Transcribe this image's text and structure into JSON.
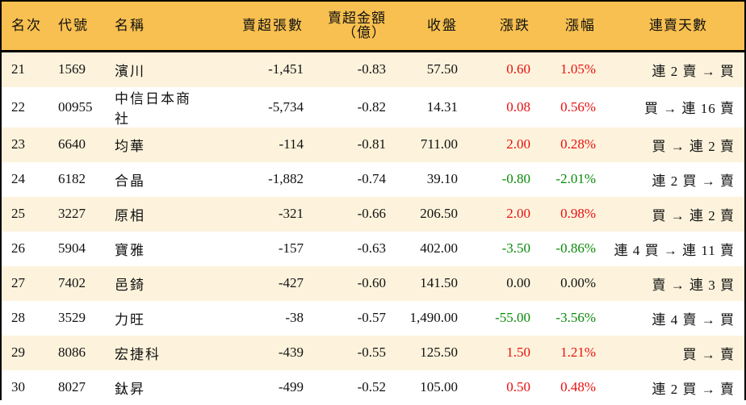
{
  "colors": {
    "header_bg": "#f8c050",
    "row_odd_bg": "#fdf3dc",
    "row_even_bg": "#ffffff",
    "up": "#e81010",
    "down": "#0a8a0a",
    "border": "#000000"
  },
  "table": {
    "headers": {
      "rank": "名次",
      "code": "代號",
      "name": "名稱",
      "net_sell_lots": "賣超張數",
      "net_sell_amount": "賣超金額",
      "net_sell_amount_unit": "（億）",
      "close": "收盤",
      "change": "漲跌",
      "change_pct": "漲幅",
      "streak": "連賣天數"
    },
    "rows": [
      {
        "rank": "21",
        "code": "1569",
        "name": "濱川",
        "net_sell_lots": "-1,451",
        "net_sell_amount": "-0.83",
        "close": "57.50",
        "change": "0.60",
        "change_pct": "1.05%",
        "direction": "up",
        "streak": "連 2 賣 → 買"
      },
      {
        "rank": "22",
        "code": "00955",
        "name": "中信日本商社",
        "net_sell_lots": "-5,734",
        "net_sell_amount": "-0.82",
        "close": "14.31",
        "change": "0.08",
        "change_pct": "0.56%",
        "direction": "up",
        "streak": "買 → 連 16 賣"
      },
      {
        "rank": "23",
        "code": "6640",
        "name": "均華",
        "net_sell_lots": "-114",
        "net_sell_amount": "-0.81",
        "close": "711.00",
        "change": "2.00",
        "change_pct": "0.28%",
        "direction": "up",
        "streak": "買 → 連 2 賣"
      },
      {
        "rank": "24",
        "code": "6182",
        "name": "合晶",
        "net_sell_lots": "-1,882",
        "net_sell_amount": "-0.74",
        "close": "39.10",
        "change": "-0.80",
        "change_pct": "-2.01%",
        "direction": "down",
        "streak": "連 2 買 → 賣"
      },
      {
        "rank": "25",
        "code": "3227",
        "name": "原相",
        "net_sell_lots": "-321",
        "net_sell_amount": "-0.66",
        "close": "206.50",
        "change": "2.00",
        "change_pct": "0.98%",
        "direction": "up",
        "streak": "買 → 連 2 賣"
      },
      {
        "rank": "26",
        "code": "5904",
        "name": "寶雅",
        "net_sell_lots": "-157",
        "net_sell_amount": "-0.63",
        "close": "402.00",
        "change": "-3.50",
        "change_pct": "-0.86%",
        "direction": "down",
        "streak": "連 4 買 → 連 11 賣"
      },
      {
        "rank": "27",
        "code": "7402",
        "name": "邑錡",
        "net_sell_lots": "-427",
        "net_sell_amount": "-0.60",
        "close": "141.50",
        "change": "0.00",
        "change_pct": "0.00%",
        "direction": "flat",
        "streak": "賣 → 連 3 買"
      },
      {
        "rank": "28",
        "code": "3529",
        "name": "力旺",
        "net_sell_lots": "-38",
        "net_sell_amount": "-0.57",
        "close": "1,490.00",
        "change": "-55.00",
        "change_pct": "-3.56%",
        "direction": "down",
        "streak": "連 4 賣 → 買"
      },
      {
        "rank": "29",
        "code": "8086",
        "name": "宏捷科",
        "net_sell_lots": "-439",
        "net_sell_amount": "-0.55",
        "close": "125.50",
        "change": "1.50",
        "change_pct": "1.21%",
        "direction": "up",
        "streak": "買 → 賣"
      },
      {
        "rank": "30",
        "code": "8027",
        "name": "鈦昇",
        "net_sell_lots": "-499",
        "net_sell_amount": "-0.52",
        "close": "105.00",
        "change": "0.50",
        "change_pct": "0.48%",
        "direction": "up",
        "streak": "連 2 買 → 賣"
      }
    ]
  }
}
